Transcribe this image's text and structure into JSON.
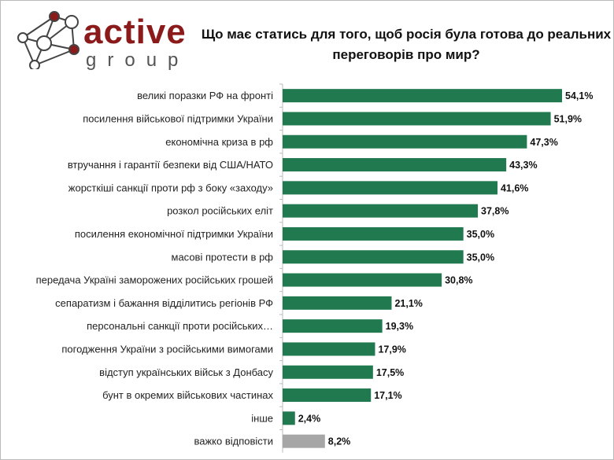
{
  "logo": {
    "word": "active",
    "sub": "group",
    "brand_color": "#8b1a1a"
  },
  "chart_data": {
    "type": "bar",
    "orientation": "horizontal",
    "title": "Що має статись для того, щоб росія була готова до реальних переговорів про мир?",
    "categories": [
      "великі поразки РФ на фронті",
      "посилення військової підтримки України",
      "економічна криза в рф",
      "втручання і гарантії безпеки від США/НАТО",
      "жорсткіші санкції проти рф з боку «заходу»",
      "розкол російських еліт",
      "посилення економічної підтримки України",
      "масові протести в рф",
      "передача Україні заморожених російських грошей",
      "сепаратизм і бажання відділитись регіонів РФ",
      "персональні санкції проти російських…",
      "погодження України з російськими вимогами",
      "відступ українських військ з Донбасу",
      "бунт в окремих військових частинах",
      "інше",
      "важко відповісти"
    ],
    "values": [
      54.1,
      51.9,
      47.3,
      43.3,
      41.6,
      37.8,
      35.0,
      35.0,
      30.8,
      21.1,
      19.3,
      17.9,
      17.5,
      17.1,
      2.4,
      8.2
    ],
    "value_labels": [
      "54,1%",
      "51,9%",
      "47,3%",
      "43,3%",
      "41,6%",
      "37,8%",
      "35,0%",
      "35,0%",
      "30,8%",
      "21,1%",
      "19,3%",
      "17,9%",
      "17,5%",
      "17,1%",
      "2,4%",
      "8,2%"
    ],
    "colors": [
      "#217a4f",
      "#217a4f",
      "#217a4f",
      "#217a4f",
      "#217a4f",
      "#217a4f",
      "#217a4f",
      "#217a4f",
      "#217a4f",
      "#217a4f",
      "#217a4f",
      "#217a4f",
      "#217a4f",
      "#217a4f",
      "#217a4f",
      "#a6a6a6"
    ],
    "xlim": [
      0,
      54.1
    ],
    "grid": false,
    "legend": "none"
  }
}
